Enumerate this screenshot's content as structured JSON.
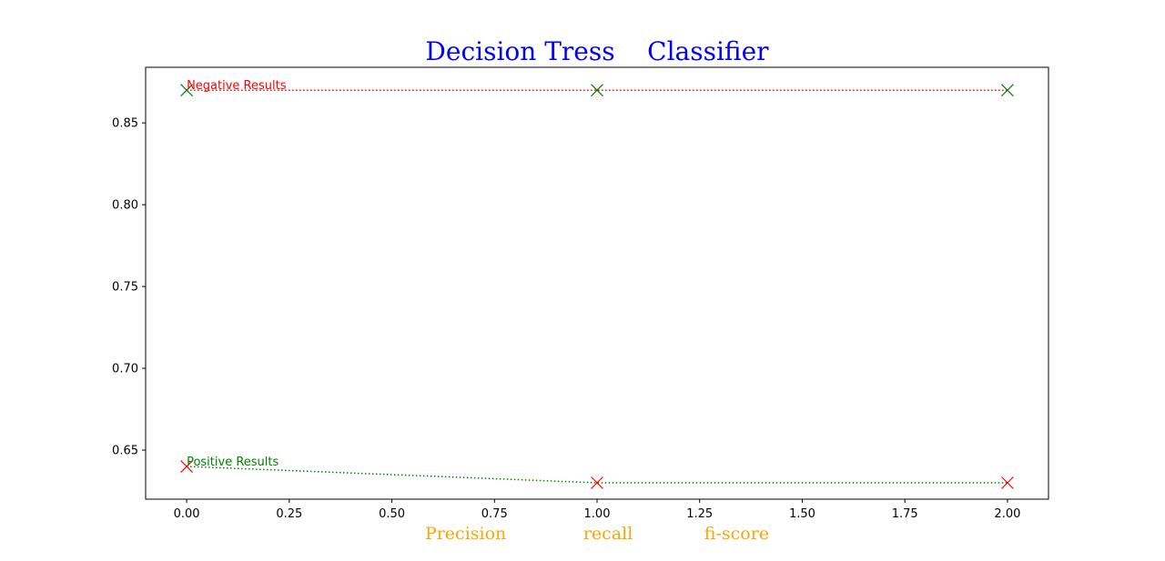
{
  "chart_data": {
    "type": "line",
    "title": "Decision Tress    Classifier",
    "xlabel": "Precision              recall             fi-score",
    "ylabel": "",
    "x": [
      0,
      1,
      2
    ],
    "xlim": [
      -0.1,
      2.1
    ],
    "ylim": [
      0.62,
      0.884
    ],
    "xticks": [
      0,
      0.25,
      0.5,
      0.75,
      1,
      1.25,
      1.5,
      1.75,
      2
    ],
    "xtick_labels": [
      "0.00",
      "0.25",
      "0.50",
      "0.75",
      "1.00",
      "1.25",
      "1.50",
      "1.75",
      "2.00"
    ],
    "yticks": [
      0.65,
      0.7,
      0.75,
      0.8,
      0.85
    ],
    "ytick_labels": [
      "0.65",
      "0.70",
      "0.75",
      "0.80",
      "0.85"
    ],
    "grid": false,
    "series": [
      {
        "name": "Negative Results",
        "values": [
          0.87,
          0.87,
          0.87
        ],
        "line_color": "#ff0000",
        "marker_color": "#008000",
        "line_style": "dotted",
        "marker": "x"
      },
      {
        "name": "Positive Results",
        "values": [
          0.64,
          0.63,
          0.63
        ],
        "line_color": "#008000",
        "marker_color": "#ff0000",
        "line_style": "dotted",
        "marker": "x"
      }
    ],
    "annotations": [
      {
        "text": "Negative Results",
        "x": 0,
        "y": 0.87,
        "color": "#ff0000"
      },
      {
        "text": "Positive Results",
        "x": 0,
        "y": 0.64,
        "color": "#008000"
      }
    ]
  }
}
